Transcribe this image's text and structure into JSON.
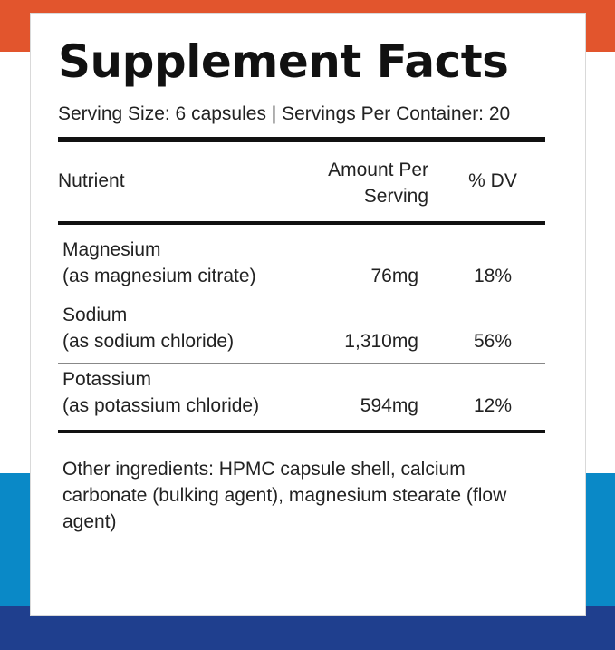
{
  "colors": {
    "orange": "#e2552d",
    "white": "#ffffff",
    "blue": "#0a89c7",
    "navy": "#1f3f8e"
  },
  "panel": {
    "title": "Supplement Facts",
    "serving": "Serving Size: 6 capsules | Servings Per Container: 20"
  },
  "table": {
    "headers": {
      "nutrient": "Nutrient",
      "amount_line1": "Amount Per",
      "amount_line2": "Serving",
      "dv": "% DV"
    },
    "rows": [
      {
        "name": "Magnesium",
        "source": "(as magnesium citrate)",
        "amount": "76mg",
        "dv": "18%"
      },
      {
        "name": "Sodium",
        "source": "(as sodium chloride)",
        "amount": "1,310mg",
        "dv": "56%"
      },
      {
        "name": "Potassium",
        "source": "(as potassium chloride)",
        "amount": "594mg",
        "dv": "12%"
      }
    ]
  },
  "other_ingredients": "Other ingredients: HPMC capsule shell, calcium carbonate (bulking agent), magnesium stearate (flow agent)"
}
